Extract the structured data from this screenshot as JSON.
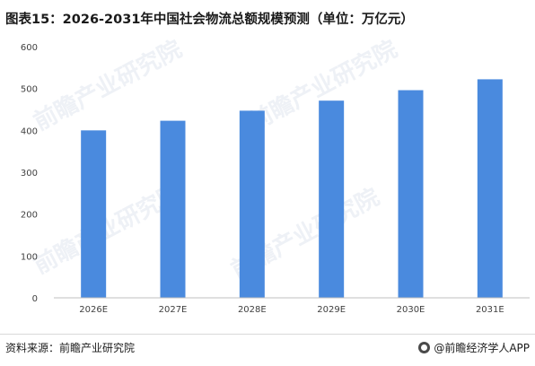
{
  "title": "图表15：2026-2031年中国社会物流总额规模预测（单位：万亿元）",
  "watermarks": [
    "前瞻产业研究院",
    "前瞻产业研究院",
    "前瞻产业研究院",
    "前瞻产业研究院"
  ],
  "footer": {
    "source": "资料来源：前瞻产业研究院",
    "credit": "@前瞻经济学人APP"
  },
  "colors": {
    "bar": "#4a8ade",
    "grid": "#e0e0e0"
  },
  "chart_data": {
    "type": "bar",
    "title": "图表15：2026-2031年中国社会物流总额规模预测（单位：万亿元）",
    "categories": [
      "2026E",
      "2027E",
      "2028E",
      "2029E",
      "2030E",
      "2031E"
    ],
    "values": [
      400,
      423,
      447,
      471,
      496,
      522
    ],
    "ylim": [
      0,
      600
    ],
    "yticks": [
      0,
      100,
      200,
      300,
      400,
      500,
      600
    ],
    "grid": false,
    "legend": "none",
    "xlabel": "",
    "ylabel": ""
  }
}
